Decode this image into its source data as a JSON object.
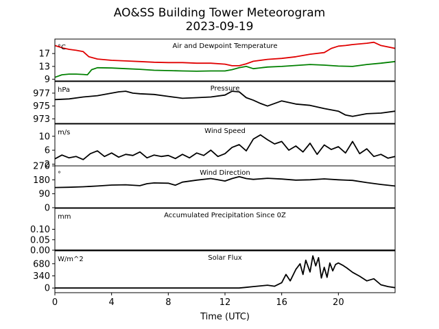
{
  "figure": {
    "title_line1": "AO&SS Building Tower Meteorogram",
    "title_line2": "2023-09-19",
    "xlabel": "Time (UTC)",
    "x_ticks": [
      0,
      4,
      8,
      12,
      16,
      20
    ],
    "x_range": [
      0,
      24
    ]
  },
  "chart_data": [
    {
      "type": "line",
      "title": "Air and Dewpoint Temperature",
      "unit": "°C",
      "ylim": [
        8.5,
        21.5
      ],
      "y_ticks": [
        9,
        13,
        17
      ],
      "x_range": [
        0,
        24
      ],
      "series": [
        {
          "color": "#e00000",
          "x": [
            0,
            0.5,
            1,
            1.5,
            2,
            2.4,
            3,
            4,
            5,
            6,
            7,
            8,
            9,
            10,
            11,
            12,
            12.5,
            13,
            13.5,
            14,
            15,
            16,
            17,
            18,
            19,
            19.5,
            20,
            20.5,
            21,
            22,
            22.5,
            23,
            24
          ],
          "y": [
            19.5,
            18.8,
            18.3,
            18.0,
            17.6,
            16.0,
            15.3,
            14.9,
            14.7,
            14.5,
            14.3,
            14.2,
            14.2,
            14.0,
            14.0,
            13.7,
            13.2,
            13.2,
            13.8,
            14.6,
            15.2,
            15.5,
            16.0,
            16.8,
            17.3,
            18.6,
            19.3,
            19.5,
            19.8,
            20.2,
            20.5,
            19.5,
            18.6
          ]
        },
        {
          "color": "#008000",
          "x": [
            0,
            0.5,
            1,
            1.5,
            2,
            2.3,
            2.6,
            3,
            4,
            5,
            6,
            7,
            8,
            9,
            10,
            11,
            12,
            12.5,
            13,
            13.5,
            14,
            15,
            16,
            17,
            18,
            19,
            20,
            21,
            22,
            23,
            24
          ],
          "y": [
            9.6,
            10.4,
            10.6,
            10.6,
            10.5,
            10.4,
            12.0,
            12.6,
            12.5,
            12.3,
            12.1,
            11.8,
            11.7,
            11.6,
            11.5,
            11.6,
            11.6,
            12.0,
            12.6,
            13.0,
            12.3,
            12.8,
            13.0,
            13.3,
            13.6,
            13.4,
            13.1,
            13.0,
            13.6,
            14.0,
            14.5
          ]
        }
      ]
    },
    {
      "type": "line",
      "title": "Pressure",
      "unit": "hPa",
      "ylim": [
        972.3,
        978.8
      ],
      "y_ticks": [
        973,
        975,
        977
      ],
      "x_range": [
        0,
        24
      ],
      "series": [
        {
          "color": "#000000",
          "x": [
            0,
            1,
            2,
            3,
            4,
            4.5,
            5,
            5.5,
            6,
            7,
            8,
            9,
            10,
            11,
            12,
            12.5,
            13,
            13.5,
            14,
            14.5,
            15,
            16,
            17,
            18,
            19,
            20,
            20.5,
            21,
            22,
            23,
            24
          ],
          "y": [
            976.0,
            976.1,
            976.4,
            976.6,
            977.0,
            977.2,
            977.3,
            977.0,
            976.9,
            976.8,
            976.5,
            976.2,
            976.3,
            976.4,
            976.7,
            977.3,
            977.2,
            976.3,
            975.9,
            975.4,
            975.0,
            975.8,
            975.3,
            975.1,
            974.6,
            974.2,
            973.6,
            973.4,
            973.8,
            973.9,
            974.2
          ]
        }
      ]
    },
    {
      "type": "line",
      "title": "Wind Speed",
      "unit": "m/s",
      "ylim": [
        1.5,
        13.5
      ],
      "y_ticks": [
        2,
        6,
        10
      ],
      "x_range": [
        0,
        24
      ],
      "series": [
        {
          "color": "#000000",
          "x": [
            0,
            0.5,
            1,
            1.5,
            2,
            2.5,
            3,
            3.5,
            4,
            4.5,
            5,
            5.5,
            6,
            6.5,
            7,
            7.5,
            8,
            8.5,
            9,
            9.5,
            10,
            10.5,
            11,
            11.5,
            12,
            12.5,
            13,
            13.5,
            14,
            14.5,
            15,
            15.5,
            16,
            16.5,
            17,
            17.5,
            18,
            18.5,
            19,
            19.5,
            20,
            20.5,
            21,
            21.5,
            22,
            22.5,
            23,
            23.5,
            24
          ],
          "y": [
            3.5,
            4.6,
            3.8,
            4.2,
            3.3,
            5.0,
            5.8,
            4.2,
            5.2,
            4.0,
            4.8,
            4.5,
            5.5,
            3.8,
            4.6,
            4.2,
            4.5,
            3.6,
            4.8,
            3.8,
            5.2,
            4.5,
            6.0,
            4.2,
            5.0,
            6.8,
            7.6,
            5.8,
            9.2,
            10.4,
            9.0,
            7.8,
            8.5,
            6.0,
            7.2,
            5.5,
            8.0,
            4.8,
            7.5,
            6.2,
            7.0,
            5.2,
            8.5,
            5.0,
            6.4,
            4.2,
            4.8,
            3.7,
            4.2
          ]
        }
      ]
    },
    {
      "type": "line",
      "title": "Wind Direction",
      "unit": "°",
      "ylim": [
        0,
        270
      ],
      "y_ticks": [
        0,
        90,
        180,
        270
      ],
      "x_range": [
        0,
        24
      ],
      "series": [
        {
          "color": "#000000",
          "x": [
            0,
            1,
            2,
            3,
            4,
            5,
            6,
            6.5,
            7,
            8,
            8.5,
            9,
            10,
            11,
            11.5,
            12,
            12.5,
            13,
            13.5,
            14,
            15,
            16,
            17,
            18,
            19,
            20,
            21,
            22,
            23,
            24
          ],
          "y": [
            130,
            132,
            135,
            140,
            146,
            148,
            142,
            155,
            160,
            158,
            145,
            165,
            178,
            188,
            180,
            172,
            188,
            200,
            188,
            183,
            190,
            185,
            178,
            180,
            186,
            180,
            176,
            162,
            150,
            140
          ]
        }
      ]
    },
    {
      "type": "line",
      "title": "Accumulated Precipitation Since 0Z",
      "unit": "mm",
      "ylim": [
        0,
        0.2
      ],
      "y_ticks": [
        0.0,
        0.05,
        0.1
      ],
      "y_tick_labels": [
        "0.00",
        "0.05",
        "0.10"
      ],
      "x_range": [
        0,
        24
      ],
      "series": [
        {
          "color": "#000000",
          "x": [
            0,
            24
          ],
          "y": [
            0,
            0
          ]
        }
      ]
    },
    {
      "type": "line",
      "title": "Solar Flux",
      "unit": "W/m^2",
      "ylim": [
        -130,
        1040
      ],
      "y_ticks": [
        0,
        340,
        680
      ],
      "x_range": [
        0,
        24
      ],
      "series": [
        {
          "color": "#000000",
          "x": [
            0,
            13,
            13.5,
            14,
            14.5,
            15,
            15.5,
            16,
            16.3,
            16.6,
            17,
            17.3,
            17.5,
            17.7,
            18,
            18.2,
            18.4,
            18.6,
            18.8,
            19,
            19.2,
            19.4,
            19.6,
            19.8,
            20,
            20.3,
            20.6,
            21,
            21.5,
            22,
            22.5,
            23,
            23.5,
            24
          ],
          "y": [
            0,
            0,
            20,
            40,
            60,
            80,
            50,
            150,
            380,
            200,
            520,
            680,
            380,
            780,
            450,
            900,
            620,
            850,
            280,
            580,
            300,
            700,
            480,
            660,
            700,
            640,
            560,
            440,
            330,
            200,
            260,
            90,
            40,
            10
          ]
        }
      ]
    }
  ]
}
